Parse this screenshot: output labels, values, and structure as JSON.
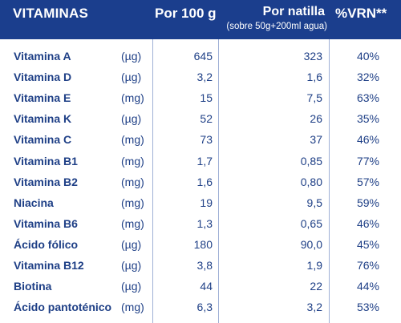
{
  "header": {
    "col_name": "VITAMINAS",
    "col_per100": "Por 100 g",
    "col_natilla": "Por natilla",
    "col_natilla_sub": "(sobre 50g+200ml agua)",
    "col_vrn": "%VRN**"
  },
  "colors": {
    "header_bg": "#1b3e8d",
    "text": "#1e3f86",
    "grid": "#9fb0d6"
  },
  "rows": [
    {
      "name": "Vitamina A",
      "unit": "(µg)",
      "per100": "645",
      "natilla": "323",
      "vrn": "40%"
    },
    {
      "name": "Vitamina D",
      "unit": "(µg)",
      "per100": "3,2",
      "natilla": "1,6",
      "vrn": "32%"
    },
    {
      "name": "Vitamina E",
      "unit": "(mg)",
      "per100": "15",
      "natilla": "7,5",
      "vrn": "63%"
    },
    {
      "name": "Vitamina K",
      "unit": "(µg)",
      "per100": "52",
      "natilla": "26",
      "vrn": "35%"
    },
    {
      "name": "Vitamina C",
      "unit": "(mg)",
      "per100": "73",
      "natilla": "37",
      "vrn": "46%"
    },
    {
      "name": "Vitamina B1",
      "unit": "(mg)",
      "per100": "1,7",
      "natilla": "0,85",
      "vrn": "77%"
    },
    {
      "name": "Vitamina B2",
      "unit": "(mg)",
      "per100": "1,6",
      "natilla": "0,80",
      "vrn": "57%"
    },
    {
      "name": "Niacina",
      "unit": "(mg)",
      "per100": "19",
      "natilla": "9,5",
      "vrn": "59%"
    },
    {
      "name": "Vitamina B6",
      "unit": "(mg)",
      "per100": "1,3",
      "natilla": "0,65",
      "vrn": "46%"
    },
    {
      "name": "Ácido fólico",
      "unit": "(µg)",
      "per100": "180",
      "natilla": "90,0",
      "vrn": "45%"
    },
    {
      "name": "Vitamina B12",
      "unit": "(µg)",
      "per100": "3,8",
      "natilla": "1,9",
      "vrn": "76%"
    },
    {
      "name": "Biotina",
      "unit": "(µg)",
      "per100": "44",
      "natilla": "22",
      "vrn": "44%"
    },
    {
      "name": "Ácido pantoténico",
      "unit": "(mg)",
      "per100": "6,3",
      "natilla": "3,2",
      "vrn": "53%"
    }
  ]
}
